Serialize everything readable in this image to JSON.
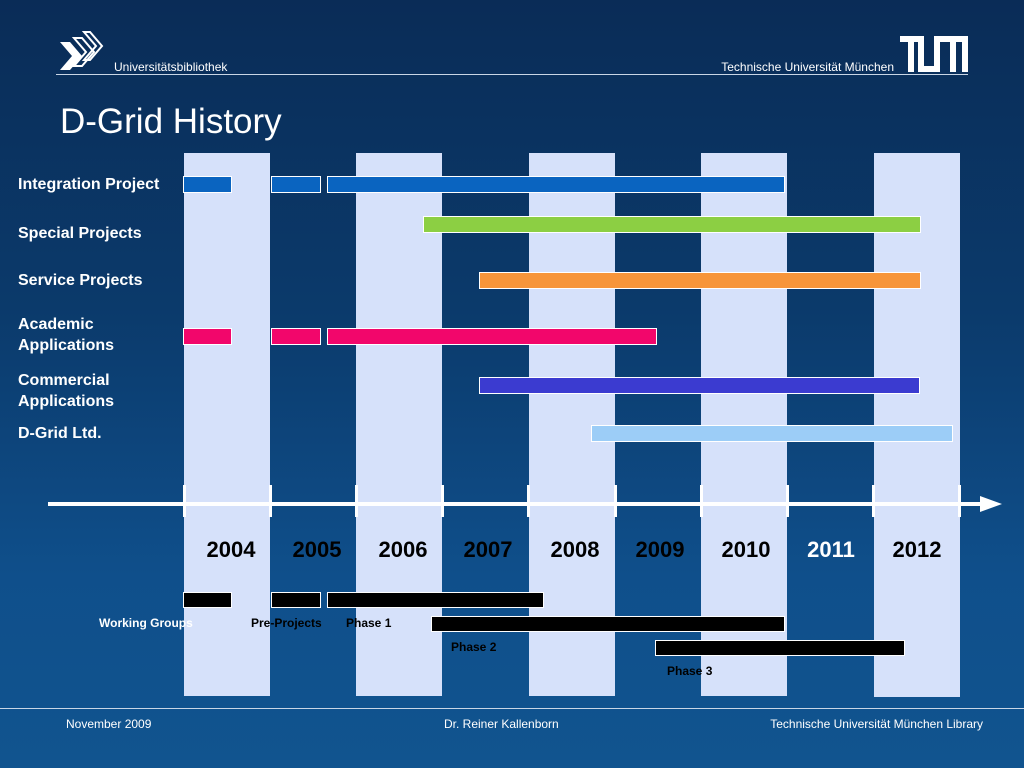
{
  "header": {
    "library": "Universitätsbibliothek",
    "university": "Technische Universität München",
    "logo_text": "TUM"
  },
  "title": "D-Grid History",
  "rows": {
    "integration": "Integration Project",
    "special": "Special Projects",
    "service": "Service Projects",
    "academic": "Academic Applications",
    "commercial": "Commercial Applications",
    "dgrid": "D-Grid Ltd."
  },
  "years": [
    "2004",
    "2005",
    "2006",
    "2007",
    "2008",
    "2009",
    "2010",
    "2011",
    "2012"
  ],
  "phases": {
    "working_groups": "Working Groups",
    "pre_projects": "Pre-Projects",
    "phase1": "Phase 1",
    "phase2": "Phase 2",
    "phase3": "Phase 3"
  },
  "colors": {
    "integration": "#0a64c0",
    "special": "#8ccf43",
    "service": "#f7953a",
    "academic": "#f2066b",
    "commercial": "#3b3bd0",
    "dgrid": "#9ccdf7",
    "column": "#d6e1fa"
  },
  "footer": {
    "date": "November 2009",
    "author": "Dr. Reiner Kallenborn",
    "org": "Technische Universität München Library"
  }
}
